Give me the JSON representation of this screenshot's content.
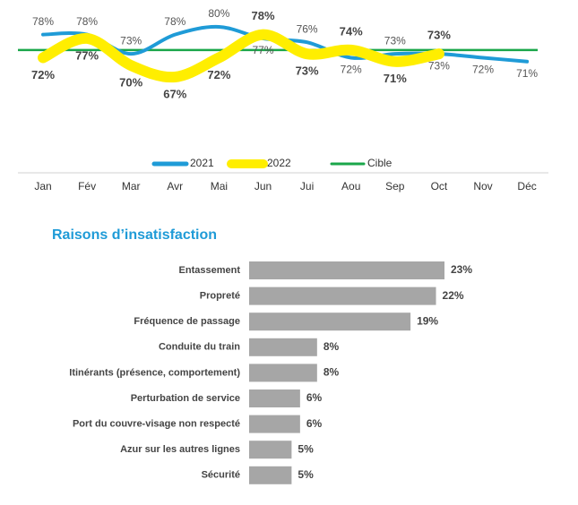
{
  "chart_data": [
    {
      "type": "line",
      "categories": [
        "Jan",
        "Fév",
        "Mar",
        "Avr",
        "Mai",
        "Jun",
        "Jui",
        "Aou",
        "Sep",
        "Oct",
        "Nov",
        "Déc"
      ],
      "series": [
        {
          "name": "2021",
          "color": "#1f9bd7",
          "values": [
            78,
            78,
            73,
            78,
            80,
            77,
            76,
            72,
            73,
            73,
            72,
            71
          ],
          "value_labels": [
            "78%",
            "78%",
            "73%",
            "78%",
            "80%",
            "77%",
            "76%",
            "72%",
            "73%",
            "73%",
            "72%",
            "71%"
          ]
        },
        {
          "name": "2022",
          "color": "#ffee00",
          "values": [
            72,
            77,
            70,
            67,
            72,
            78,
            73,
            74,
            71,
            73,
            null,
            null
          ],
          "value_labels": [
            "72%",
            "77%",
            "70%",
            "67%",
            "72%",
            "78%",
            "73%",
            "74%",
            "71%",
            "73%",
            null,
            null
          ]
        }
      ],
      "target": {
        "name": "Cible",
        "color": "#1aa64a",
        "value": 74
      }
    },
    {
      "type": "hbar",
      "title": "Raisons d’insatisfaction",
      "color": "#a6a6a6",
      "categories": [
        "Entassement",
        "Propreté",
        "Fréquence de passage",
        "Conduite du train",
        "Itinérants (présence, comportement)",
        "Perturbation de service",
        "Port du couvre-visage non respecté",
        "Azur sur les autres lignes",
        "Sécurité"
      ],
      "values": [
        23,
        22,
        19,
        8,
        8,
        6,
        6,
        5,
        5
      ],
      "value_labels": [
        "23%",
        "22%",
        "19%",
        "8%",
        "8%",
        "6%",
        "6%",
        "5%",
        "5%"
      ]
    }
  ]
}
